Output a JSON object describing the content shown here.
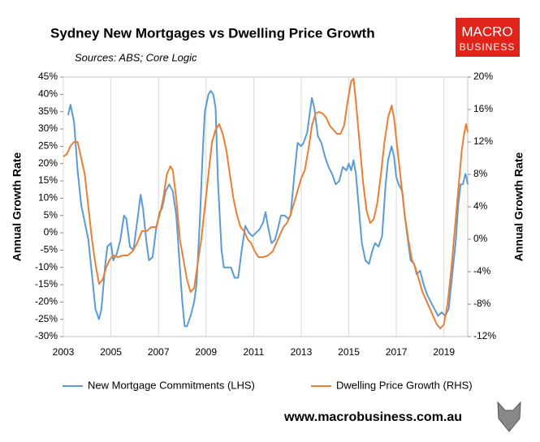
{
  "chart_data": {
    "type": "line",
    "title": "Sydney New Mortgages vs Dwelling Price Growth",
    "subtitle": "Sources: ABS; Core Logic",
    "ylabel": "Annual Growth Rate",
    "y2label": "Annual Growth Rate",
    "xlim": [
      2003,
      2020
    ],
    "xticks": [
      2003,
      2005,
      2007,
      2009,
      2011,
      2013,
      2015,
      2017,
      2019
    ],
    "grid": true,
    "ylim": [
      -30,
      45
    ],
    "yticks": [
      {
        "value": -30,
        "label": "-30%"
      },
      {
        "value": -25,
        "label": "-25%"
      },
      {
        "value": -20,
        "label": "-20%"
      },
      {
        "value": -15,
        "label": "-15%"
      },
      {
        "value": -10,
        "label": "-10%"
      },
      {
        "value": -5,
        "label": "-5%"
      },
      {
        "value": 0,
        "label": "0%"
      },
      {
        "value": 5,
        "label": "5%"
      },
      {
        "value": 10,
        "label": "10%"
      },
      {
        "value": 15,
        "label": "15%"
      },
      {
        "value": 20,
        "label": "20%"
      },
      {
        "value": 25,
        "label": "25%"
      },
      {
        "value": 30,
        "label": "30%"
      },
      {
        "value": 35,
        "label": "35%"
      },
      {
        "value": 40,
        "label": "40%"
      },
      {
        "value": 45,
        "label": "45%"
      }
    ],
    "y2lim": [
      -12,
      20
    ],
    "y2ticks": [
      {
        "value": -12,
        "label": "-12%"
      },
      {
        "value": -8,
        "label": "-8%"
      },
      {
        "value": -4,
        "label": "-4%"
      },
      {
        "value": 0,
        "label": "0%"
      },
      {
        "value": 4,
        "label": "4%"
      },
      {
        "value": 8,
        "label": "8%"
      },
      {
        "value": 12,
        "label": "12%"
      },
      {
        "value": 16,
        "label": "16%"
      },
      {
        "value": 20,
        "label": "20%"
      }
    ],
    "series": [
      {
        "name": "New Mortgage Commitments (LHS)",
        "color": "#5b9bd5",
        "axis": "y",
        "x": [
          2003.2,
          2003.3,
          2003.45,
          2003.6,
          2003.75,
          2003.9,
          2004.05,
          2004.2,
          2004.35,
          2004.5,
          2004.6,
          2004.75,
          2004.85,
          2005.0,
          2005.1,
          2005.25,
          2005.4,
          2005.55,
          2005.65,
          2005.8,
          2005.95,
          2006.1,
          2006.25,
          2006.35,
          2006.5,
          2006.6,
          2006.75,
          2006.9,
          2007.05,
          2007.15,
          2007.3,
          2007.45,
          2007.6,
          2007.75,
          2007.9,
          2008.0,
          2008.1,
          2008.2,
          2008.35,
          2008.5,
          2008.6,
          2008.75,
          2008.85,
          2008.95,
          2009.1,
          2009.2,
          2009.3,
          2009.4,
          2009.5,
          2009.65,
          2009.75,
          2009.9,
          2010.05,
          2010.2,
          2010.35,
          2010.5,
          2010.65,
          2010.8,
          2010.95,
          2011.1,
          2011.25,
          2011.4,
          2011.5,
          2011.6,
          2011.75,
          2011.9,
          2012.05,
          2012.15,
          2012.3,
          2012.45,
          2012.55,
          2012.7,
          2012.85,
          2013.0,
          2013.1,
          2013.25,
          2013.35,
          2013.45,
          2013.55,
          2013.7,
          2013.85,
          2014.0,
          2014.15,
          2014.3,
          2014.45,
          2014.6,
          2014.75,
          2014.9,
          2015.0,
          2015.1,
          2015.2,
          2015.3,
          2015.45,
          2015.55,
          2015.7,
          2015.85,
          2016.0,
          2016.1,
          2016.25,
          2016.4,
          2016.55,
          2016.65,
          2016.8,
          2016.9,
          2017.0,
          2017.1,
          2017.25,
          2017.35,
          2017.5,
          2017.6,
          2017.75,
          2017.85,
          2018.0,
          2018.15,
          2018.3,
          2018.45,
          2018.6,
          2018.75,
          2018.9,
          2019.05,
          2019.2,
          2019.35,
          2019.5,
          2019.6,
          2019.7,
          2019.8,
          2019.9,
          2019.95,
          2020.0
        ],
        "values": [
          34,
          37,
          32,
          18,
          8,
          3,
          -2,
          -12,
          -22,
          -25,
          -22,
          -10,
          -4,
          -3,
          -8,
          -6,
          -2,
          5,
          4,
          -4,
          -5,
          3,
          11,
          7,
          -3,
          -8,
          -7,
          1,
          6,
          7,
          12,
          14,
          12,
          5,
          -10,
          -20,
          -27,
          -27,
          -24,
          -20,
          -15,
          5,
          22,
          35,
          40,
          41,
          40,
          36,
          15,
          -5,
          -10,
          -10,
          -10,
          -13,
          -13,
          -5,
          2,
          0,
          -1,
          0,
          1,
          3,
          6,
          2,
          -3,
          -2,
          2,
          5,
          5,
          4,
          5,
          16,
          26,
          25,
          26,
          29,
          34,
          39,
          36,
          28,
          26,
          22,
          19,
          17,
          14,
          15,
          19,
          18,
          20,
          18,
          21,
          17,
          5,
          -3,
          -8,
          -9,
          -5,
          -3,
          -4,
          -1,
          14,
          21,
          25,
          22,
          16,
          14,
          12,
          5,
          -3,
          -8,
          -9,
          -12,
          -11,
          -15,
          -18,
          -20,
          -22,
          -24,
          -23,
          -24,
          -22,
          -12,
          -2,
          8,
          14,
          14,
          17,
          16,
          14
        ]
      },
      {
        "name": "Dwelling Price Growth (RHS)",
        "color": "#ed7d31",
        "axis": "y2",
        "x": [
          2003.0,
          2003.15,
          2003.3,
          2003.45,
          2003.6,
          2003.75,
          2003.9,
          2004.05,
          2004.2,
          2004.35,
          2004.5,
          2004.65,
          2004.8,
          2004.95,
          2005.1,
          2005.3,
          2005.5,
          2005.7,
          2005.9,
          2006.1,
          2006.3,
          2006.5,
          2006.7,
          2006.9,
          2007.05,
          2007.2,
          2007.35,
          2007.5,
          2007.6,
          2007.75,
          2007.9,
          2008.05,
          2008.2,
          2008.35,
          2008.5,
          2008.65,
          2008.8,
          2008.95,
          2009.1,
          2009.25,
          2009.4,
          2009.55,
          2009.7,
          2009.85,
          2010.0,
          2010.15,
          2010.3,
          2010.45,
          2010.6,
          2010.75,
          2010.9,
          2011.05,
          2011.2,
          2011.4,
          2011.6,
          2011.8,
          2011.95,
          2012.1,
          2012.25,
          2012.4,
          2012.55,
          2012.7,
          2012.85,
          2013.0,
          2013.15,
          2013.3,
          2013.45,
          2013.6,
          2013.75,
          2013.9,
          2014.05,
          2014.2,
          2014.35,
          2014.5,
          2014.65,
          2014.8,
          2014.95,
          2015.1,
          2015.2,
          2015.3,
          2015.45,
          2015.6,
          2015.75,
          2015.9,
          2016.05,
          2016.2,
          2016.35,
          2016.5,
          2016.65,
          2016.8,
          2016.9,
          2017.05,
          2017.2,
          2017.35,
          2017.5,
          2017.65,
          2017.8,
          2017.95,
          2018.1,
          2018.25,
          2018.4,
          2018.55,
          2018.7,
          2018.85,
          2019.0,
          2019.15,
          2019.3,
          2019.45,
          2019.6,
          2019.75,
          2019.85,
          2019.93,
          2020.0
        ],
        "values": [
          10.2,
          10.5,
          11.5,
          12,
          12,
          10,
          8,
          4,
          0,
          -3,
          -5.5,
          -5,
          -3.5,
          -2.5,
          -2,
          -2.2,
          -2,
          -2,
          -1.5,
          -0.5,
          1,
          1,
          1.5,
          1.5,
          3,
          5,
          8,
          9,
          8.5,
          5,
          0,
          -2.5,
          -5,
          -6.5,
          -6,
          -3,
          0,
          4,
          8,
          12,
          13.5,
          14.2,
          13,
          11,
          8,
          5,
          3,
          1.5,
          1,
          0,
          -0.5,
          -1.5,
          -2.2,
          -2.2,
          -2,
          -1.5,
          -0.5,
          0.5,
          1.5,
          2,
          3,
          4.5,
          6,
          7.5,
          8.5,
          11,
          14,
          15.5,
          15.7,
          15.5,
          15,
          14,
          13.5,
          13,
          13,
          14,
          17,
          19.5,
          19.8,
          17,
          12,
          7,
          3.5,
          2,
          2.5,
          4.5,
          8,
          12,
          15,
          16.5,
          15,
          11,
          7,
          3,
          0,
          -2.5,
          -3.5,
          -5,
          -6.5,
          -7.5,
          -8.5,
          -9.5,
          -10.5,
          -11,
          -10.5,
          -8,
          -4,
          1,
          6,
          11,
          13,
          14.2,
          13.2
        ]
      }
    ]
  },
  "logo": {
    "line1": "MACRO",
    "line2": "BUSINESS"
  },
  "footer": {
    "url": "www.macrobusiness.com.au"
  }
}
